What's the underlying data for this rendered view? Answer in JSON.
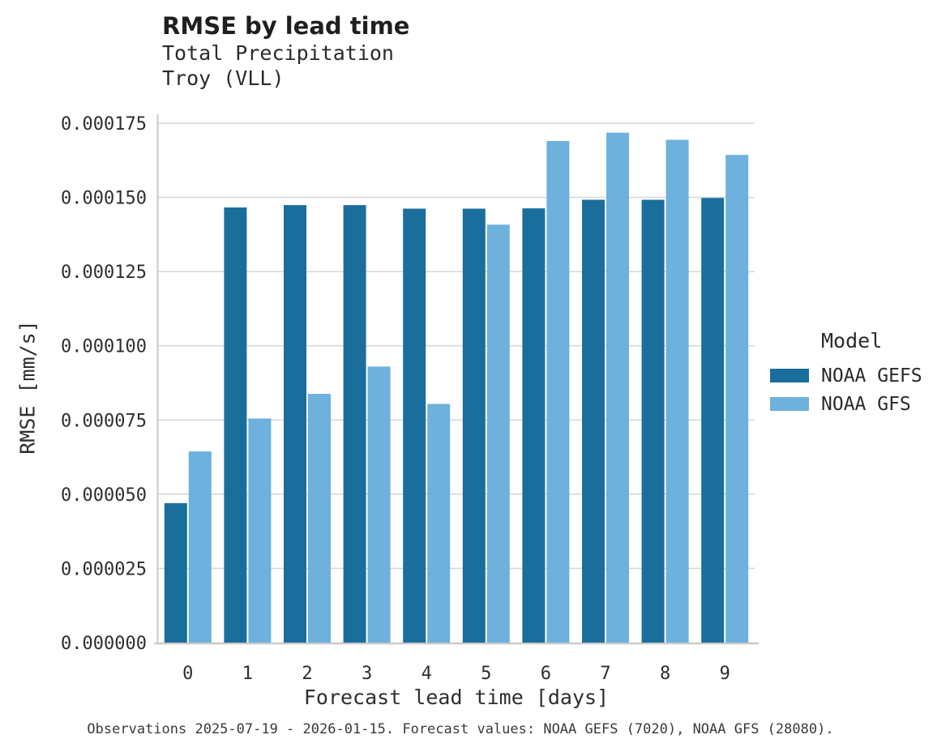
{
  "header": {
    "title": "RMSE by lead time",
    "subtitle_line1": "Total Precipitation",
    "subtitle_line2": "Troy (VLL)"
  },
  "chart_data": {
    "type": "bar",
    "title": "RMSE by lead time",
    "subtitle": [
      "Total Precipitation",
      "Troy (VLL)"
    ],
    "xlabel": "Forecast lead time [days]",
    "ylabel": "RMSE [mm/s]",
    "categories": [
      "0",
      "1",
      "2",
      "3",
      "4",
      "5",
      "6",
      "7",
      "8",
      "9"
    ],
    "series": [
      {
        "name": "NOAA GEFS",
        "color": "#1A6E9C",
        "values": [
          4.7e-05,
          0.0001466,
          0.0001474,
          0.0001474,
          0.0001462,
          0.0001462,
          0.0001463,
          0.0001492,
          0.0001492,
          0.0001498
        ]
      },
      {
        "name": "NOAA GFS",
        "color": "#6DB1DC",
        "values": [
          6.44e-05,
          7.55e-05,
          8.38e-05,
          9.3e-05,
          8.04e-05,
          0.0001408,
          0.000169,
          0.0001718,
          0.0001694,
          0.0001643
        ]
      }
    ],
    "ylim": [
      0,
      0.000175
    ],
    "yticks": [
      {
        "value": 0.0,
        "label": "0.000000"
      },
      {
        "value": 2.5e-05,
        "label": "0.000025"
      },
      {
        "value": 5e-05,
        "label": "0.000050"
      },
      {
        "value": 7.5e-05,
        "label": "0.000075"
      },
      {
        "value": 0.0001,
        "label": "0.000100"
      },
      {
        "value": 0.000125,
        "label": "0.000125"
      },
      {
        "value": 0.00015,
        "label": "0.000150"
      },
      {
        "value": 0.000175,
        "label": "0.000175"
      }
    ],
    "grid": "horizontal",
    "grid_color": "#D9D9D9",
    "axis_color": "#C9C9C9",
    "legend_title": "Model",
    "legend_position": "right"
  },
  "caption": "Observations 2025-07-19 - 2026-01-15. Forecast values: NOAA GEFS (7020), NOAA GFS (28080)."
}
